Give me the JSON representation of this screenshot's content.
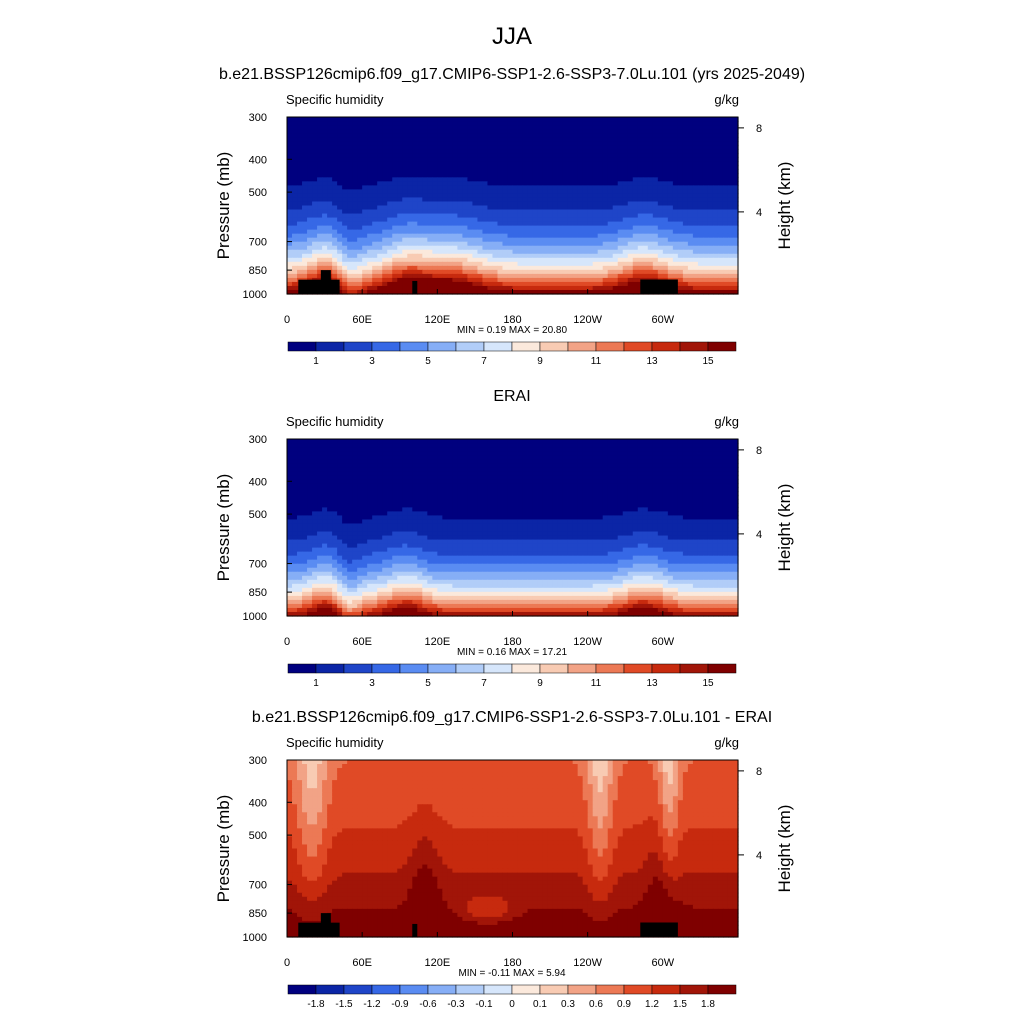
{
  "page": {
    "title": "JJA"
  },
  "palettes": {
    "absolute": [
      "#00007f",
      "#0b25a6",
      "#1f45c8",
      "#3668e6",
      "#5a8cf2",
      "#86aef6",
      "#b1cdf8",
      "#d6e6fb",
      "#fbe9dc",
      "#f8cbb3",
      "#f2a386",
      "#ec7955",
      "#e04a26",
      "#c72a0e",
      "#a11508",
      "#7f0000"
    ],
    "difference": [
      "#00007f",
      "#0b25a6",
      "#1f45c8",
      "#3668e6",
      "#5a8cf2",
      "#86aef6",
      "#b1cdf8",
      "#d6e6fb",
      "#fbe9dc",
      "#f8cbb3",
      "#f2a386",
      "#ec7955",
      "#e04a26",
      "#c72a0e",
      "#a11508",
      "#7f0000"
    ],
    "topography": "#000000"
  },
  "chart_data": [
    {
      "type": "heatmap",
      "title": "b.e21.BSSP126cmip6.f09_g17.CMIP6-SSP1-2.6-SSP3-7.0Lu.101 (yrs 2025-2049)",
      "left_label": "Specific humidity",
      "right_label": "g/kg",
      "ylabel": "Pressure (mb)",
      "y2label": "Height (km)",
      "xticks": [
        "0",
        "60E",
        "120E",
        "180",
        "120W",
        "60W"
      ],
      "xtick_lon": [
        0,
        60,
        120,
        180,
        240,
        300
      ],
      "xlim": [
        0,
        360
      ],
      "yticks": [
        300,
        400,
        500,
        700,
        850,
        1000
      ],
      "ylim": [
        300,
        1000
      ],
      "y_scale": "log",
      "y2ticks": [
        8,
        4
      ],
      "stats": "MIN =   0.19  MAX =  20.80",
      "min": 0.19,
      "max": 20.8,
      "levels": [
        0,
        1,
        2,
        3,
        4,
        5,
        6,
        7,
        8,
        9,
        10,
        11,
        12,
        13,
        14,
        15
      ],
      "colorbar_labels": [
        "1",
        "3",
        "5",
        "7",
        "9",
        "11",
        "13",
        "15"
      ],
      "palette": "absolute",
      "field": "model",
      "topography_masked": true
    },
    {
      "type": "heatmap",
      "title": "ERAI",
      "left_label": "Specific humidity",
      "right_label": "g/kg",
      "ylabel": "Pressure (mb)",
      "y2label": "Height (km)",
      "xticks": [
        "0",
        "60E",
        "120E",
        "180",
        "120W",
        "60W"
      ],
      "xtick_lon": [
        0,
        60,
        120,
        180,
        240,
        300
      ],
      "xlim": [
        0,
        360
      ],
      "yticks": [
        300,
        400,
        500,
        700,
        850,
        1000
      ],
      "ylim": [
        300,
        1000
      ],
      "y_scale": "log",
      "y2ticks": [
        8,
        4
      ],
      "stats": "MIN =   0.16  MAX =  17.21",
      "min": 0.16,
      "max": 17.21,
      "levels": [
        0,
        1,
        2,
        3,
        4,
        5,
        6,
        7,
        8,
        9,
        10,
        11,
        12,
        13,
        14,
        15
      ],
      "colorbar_labels": [
        "1",
        "3",
        "5",
        "7",
        "9",
        "11",
        "13",
        "15"
      ],
      "palette": "absolute",
      "field": "obs",
      "topography_masked": false
    },
    {
      "type": "heatmap",
      "title": "b.e21.BSSP126cmip6.f09_g17.CMIP6-SSP1-2.6-SSP3-7.0Lu.101 - ERAI",
      "left_label": "Specific humidity",
      "right_label": "g/kg",
      "ylabel": "Pressure (mb)",
      "y2label": "Height (km)",
      "xticks": [
        "0",
        "60E",
        "120E",
        "180",
        "120W",
        "60W"
      ],
      "xtick_lon": [
        0,
        60,
        120,
        180,
        240,
        300
      ],
      "xlim": [
        0,
        360
      ],
      "yticks": [
        300,
        400,
        500,
        700,
        850,
        1000
      ],
      "ylim": [
        300,
        1000
      ],
      "y_scale": "log",
      "y2ticks": [
        8,
        4
      ],
      "stats": "MIN =  -0.11  MAX =    5.94",
      "min": -0.11,
      "max": 5.94,
      "levels": [
        -2.1,
        -1.8,
        -1.5,
        -1.2,
        -0.9,
        -0.6,
        -0.3,
        -0.1,
        0,
        0.1,
        0.3,
        0.6,
        0.9,
        1.2,
        1.5,
        1.8
      ],
      "colorbar_labels": [
        "-1.8",
        "-1.5",
        "-1.2",
        "-0.9",
        "-0.6",
        "-0.3",
        "-0.1",
        "0",
        "0.1",
        "0.3",
        "0.6",
        "0.9",
        "1.2",
        "1.5",
        "1.8"
      ],
      "palette": "difference",
      "field": "diff",
      "topography_masked": true
    }
  ]
}
